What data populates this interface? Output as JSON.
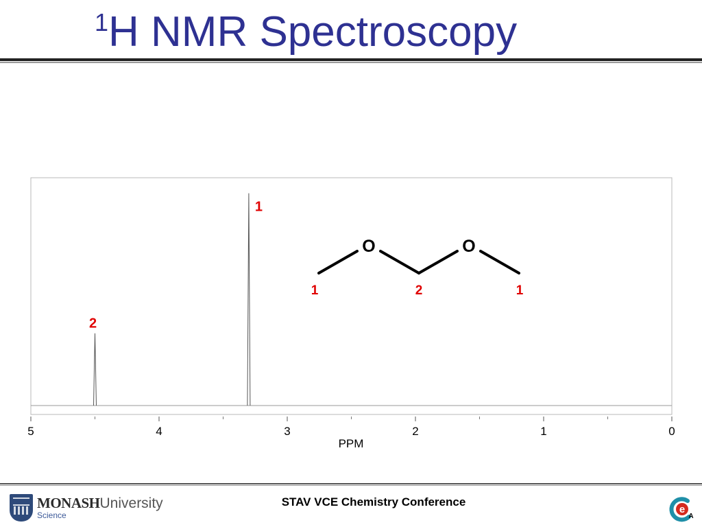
{
  "title": {
    "superscript": "1",
    "main": "H NMR Spectroscopy"
  },
  "footer": {
    "conference": "STAV VCE Chemistry Conference",
    "institution_bold": "MONASH",
    "institution_rest": "University",
    "faculty": "Science",
    "right_logo_letter": "e",
    "right_logo_small": "A"
  },
  "colors": {
    "title": "#2e3192",
    "peak_label": "#e00000",
    "spectrum": "#555555"
  },
  "chart_data": {
    "type": "line",
    "title": "",
    "xlabel": "PPM",
    "ylabel": "",
    "x_reversed": true,
    "xlim": [
      5,
      0
    ],
    "ylim": [
      0,
      1.0
    ],
    "x_ticks": [
      5,
      4,
      3,
      2,
      1,
      0
    ],
    "x_tick_labels": [
      "5",
      "4",
      "3",
      "2",
      "1",
      "0"
    ],
    "x_minor_ticks": [
      4.5,
      3.5,
      2.5,
      1.5,
      0.5
    ],
    "grid": false,
    "peaks": [
      {
        "ppm": 4.5,
        "height": 0.33,
        "label": "2"
      },
      {
        "ppm": 3.3,
        "height": 0.97,
        "label": "1"
      }
    ]
  },
  "molecule": {
    "atoms": [
      "O",
      "O"
    ],
    "carbon_labels": [
      "1",
      "2",
      "1"
    ]
  }
}
